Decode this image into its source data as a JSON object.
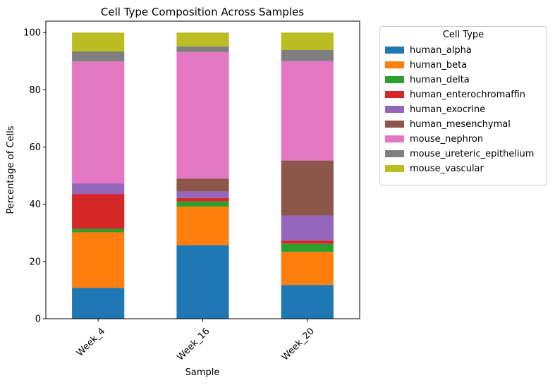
{
  "chart_data": {
    "type": "bar",
    "stacked": true,
    "title": "Cell Type Composition Across Samples",
    "xlabel": "Sample",
    "ylabel": "Percentage of Cells",
    "ylim": [
      0,
      104
    ],
    "yticks": [
      0,
      20,
      40,
      60,
      80,
      100
    ],
    "categories": [
      "Week_4",
      "Week_16",
      "Week_20"
    ],
    "legend_title": "Cell Type",
    "legend_position": "outside-right",
    "series": [
      {
        "name": "human_alpha",
        "color": "#1f77b4",
        "values": [
          10.8,
          25.7,
          11.8
        ]
      },
      {
        "name": "human_beta",
        "color": "#ff7f0e",
        "values": [
          19.4,
          13.5,
          11.6
        ]
      },
      {
        "name": "human_delta",
        "color": "#2ca02c",
        "values": [
          1.2,
          1.8,
          2.8
        ]
      },
      {
        "name": "human_enterochromaffin",
        "color": "#d62728",
        "values": [
          12.2,
          1.2,
          1.1
        ]
      },
      {
        "name": "human_exocrine",
        "color": "#9467bd",
        "values": [
          3.7,
          2.3,
          8.8
        ]
      },
      {
        "name": "human_mesenchymal",
        "color": "#8c564b",
        "values": [
          0.0,
          4.5,
          19.2
        ]
      },
      {
        "name": "mouse_nephron",
        "color": "#e377c2",
        "values": [
          42.6,
          44.2,
          34.8
        ]
      },
      {
        "name": "mouse_ureteric_epithelium",
        "color": "#7f7f7f",
        "values": [
          3.5,
          2.0,
          3.8
        ]
      },
      {
        "name": "mouse_vascular",
        "color": "#bcbd22",
        "values": [
          6.6,
          4.8,
          6.1
        ]
      }
    ]
  }
}
